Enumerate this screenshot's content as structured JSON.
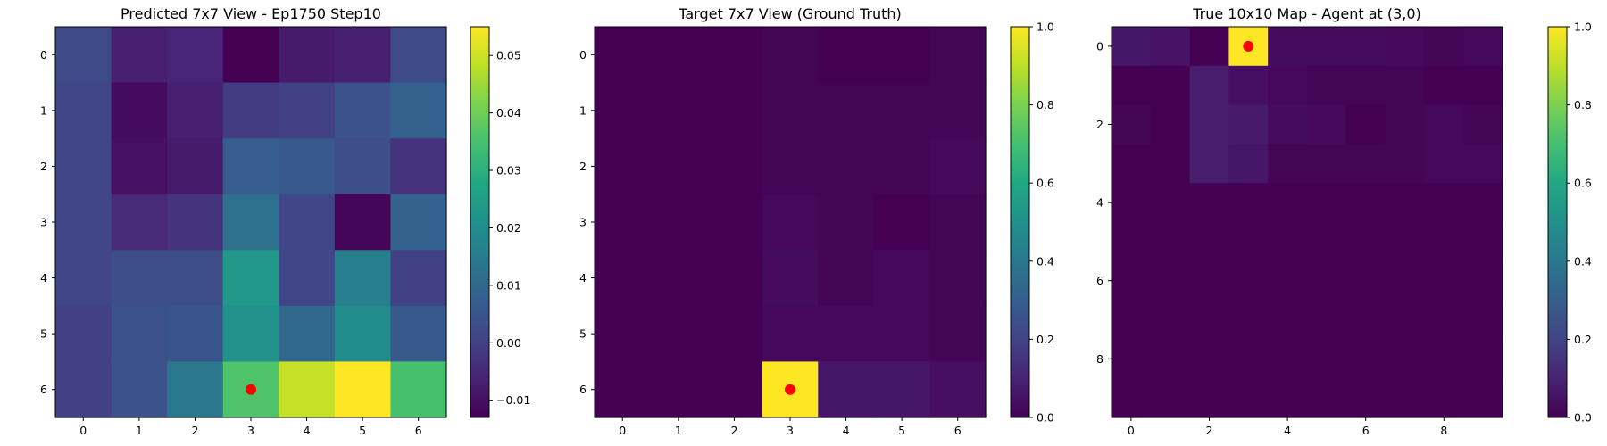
{
  "chart_data": [
    {
      "type": "heatmap",
      "title": "Predicted 7x7 View - Ep1750 Step10",
      "rows": 7,
      "cols": 7,
      "x_ticks": [
        0,
        1,
        2,
        3,
        4,
        5,
        6
      ],
      "y_ticks": [
        0,
        1,
        2,
        3,
        4,
        5,
        6
      ],
      "colorbar": {
        "min": -0.013,
        "max": 0.055,
        "ticks": [
          -0.01,
          0.0,
          0.01,
          0.02,
          0.03,
          0.04,
          0.05
        ],
        "tick_labels": [
          "−0.01",
          "0.00",
          "0.01",
          "0.02",
          "0.03",
          "0.04",
          "0.05"
        ]
      },
      "colormap": "viridis",
      "values": [
        [
          0.002,
          -0.007,
          -0.006,
          -0.013,
          -0.008,
          -0.007,
          0.002
        ],
        [
          0.001,
          -0.011,
          -0.007,
          -0.001,
          0.0,
          0.004,
          0.008
        ],
        [
          0.001,
          -0.01,
          -0.008,
          0.007,
          0.006,
          0.003,
          -0.003
        ],
        [
          0.001,
          -0.005,
          -0.003,
          0.012,
          0.001,
          -0.012,
          0.008
        ],
        [
          0.001,
          0.003,
          0.003,
          0.023,
          0.001,
          0.016,
          0.0
        ],
        [
          0.0,
          0.004,
          0.005,
          0.021,
          0.01,
          0.02,
          0.006
        ],
        [
          0.0,
          0.004,
          0.014,
          0.036,
          0.049,
          0.055,
          0.035
        ]
      ],
      "marker": {
        "row": 6,
        "col": 3,
        "color": "#ff0000"
      }
    },
    {
      "type": "heatmap",
      "title": "Target 7x7 View (Ground Truth)",
      "rows": 7,
      "cols": 7,
      "x_ticks": [
        0,
        1,
        2,
        3,
        4,
        5,
        6
      ],
      "y_ticks": [
        0,
        1,
        2,
        3,
        4,
        5,
        6
      ],
      "colorbar": {
        "min": 0.0,
        "max": 1.0,
        "ticks": [
          0.0,
          0.2,
          0.4,
          0.6,
          0.8,
          1.0
        ],
        "tick_labels": [
          "0.0",
          "0.2",
          "0.4",
          "0.6",
          "0.8",
          "1.0"
        ]
      },
      "colormap": "viridis",
      "values": [
        [
          0.0,
          0.0,
          0.0,
          0.01,
          0.0,
          0.0,
          0.01
        ],
        [
          0.0,
          0.0,
          0.0,
          0.01,
          0.01,
          0.01,
          0.01
        ],
        [
          0.0,
          0.0,
          0.0,
          0.01,
          0.01,
          0.01,
          0.02
        ],
        [
          0.0,
          0.0,
          0.0,
          0.02,
          0.01,
          0.0,
          0.01
        ],
        [
          0.0,
          0.0,
          0.0,
          0.03,
          0.01,
          0.02,
          0.01
        ],
        [
          0.0,
          0.0,
          0.0,
          0.02,
          0.02,
          0.02,
          0.01
        ],
        [
          0.0,
          0.0,
          0.0,
          1.0,
          0.06,
          0.06,
          0.04
        ]
      ],
      "marker": {
        "row": 6,
        "col": 3,
        "color": "#ff0000"
      }
    },
    {
      "type": "heatmap",
      "title": "True 10x10 Map - Agent at (3,0)",
      "rows": 10,
      "cols": 10,
      "x_ticks": [
        0,
        2,
        4,
        6,
        8
      ],
      "y_ticks": [
        0,
        2,
        4,
        6,
        8
      ],
      "colorbar": {
        "min": 0.0,
        "max": 1.0,
        "ticks": [
          0.0,
          0.2,
          0.4,
          0.6,
          0.8,
          1.0
        ],
        "tick_labels": [
          "0.0",
          "0.2",
          "0.4",
          "0.6",
          "0.8",
          "1.0"
        ]
      },
      "colormap": "viridis",
      "values": [
        [
          0.06,
          0.05,
          0.0,
          1.0,
          0.03,
          0.03,
          0.03,
          0.02,
          0.01,
          0.02
        ],
        [
          0.0,
          0.0,
          0.08,
          0.04,
          0.02,
          0.01,
          0.01,
          0.01,
          0.0,
          0.0
        ],
        [
          0.01,
          0.0,
          0.08,
          0.07,
          0.03,
          0.02,
          0.0,
          0.01,
          0.02,
          0.01
        ],
        [
          0.0,
          0.0,
          0.08,
          0.06,
          0.01,
          0.01,
          0.01,
          0.01,
          0.02,
          0.02
        ],
        [
          0.0,
          0.0,
          0.0,
          0.0,
          0.0,
          0.0,
          0.0,
          0.0,
          0.0,
          0.0
        ],
        [
          0.0,
          0.0,
          0.0,
          0.0,
          0.0,
          0.0,
          0.0,
          0.0,
          0.0,
          0.0
        ],
        [
          0.0,
          0.0,
          0.0,
          0.0,
          0.0,
          0.0,
          0.0,
          0.0,
          0.0,
          0.0
        ],
        [
          0.0,
          0.0,
          0.0,
          0.0,
          0.0,
          0.0,
          0.0,
          0.0,
          0.0,
          0.0
        ],
        [
          0.0,
          0.0,
          0.0,
          0.0,
          0.0,
          0.0,
          0.0,
          0.0,
          0.0,
          0.0
        ],
        [
          0.0,
          0.0,
          0.0,
          0.0,
          0.0,
          0.0,
          0.0,
          0.0,
          0.0,
          0.0
        ]
      ],
      "marker": {
        "row": 0,
        "col": 3,
        "color": "#ff0000"
      }
    }
  ]
}
